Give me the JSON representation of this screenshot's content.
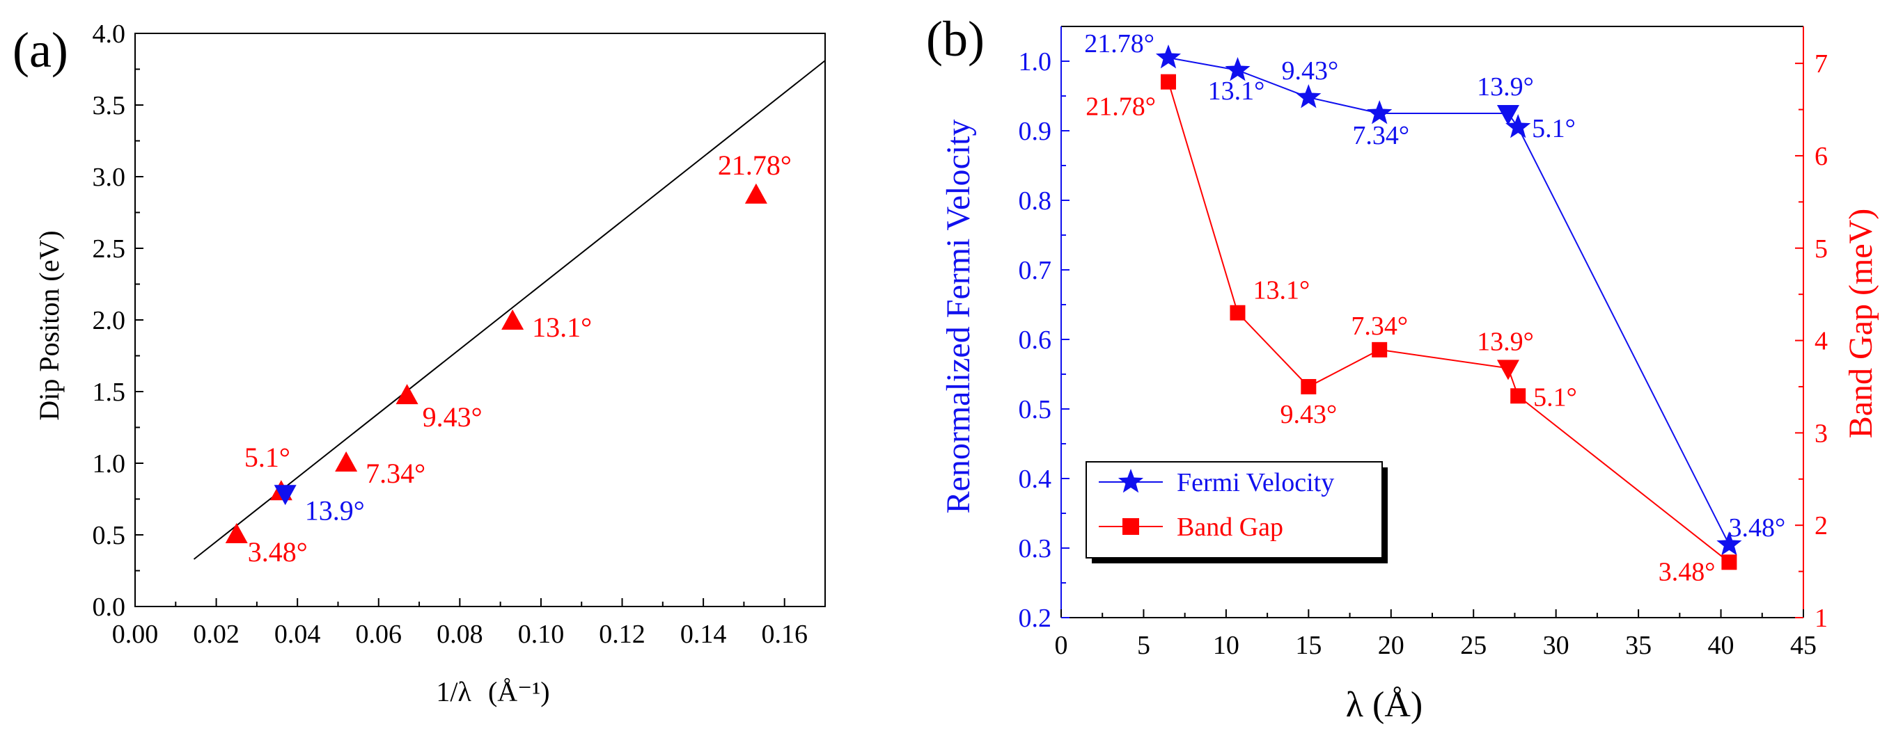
{
  "colors": {
    "axis": "#000000",
    "red": "#ff0000",
    "blue": "#1010ee"
  },
  "chart_data": [
    {
      "panel_label": "(a)",
      "type": "scatter",
      "xlabel": "1/λ",
      "xlabel_unit": "(Å⁻¹)",
      "ylabel": "Dip Positon (eV)",
      "xlim": [
        0.0,
        0.17
      ],
      "ylim": [
        0.0,
        4.0
      ],
      "xticks": [
        "0.00",
        "0.02",
        "0.04",
        "0.06",
        "0.08",
        "0.10",
        "0.12",
        "0.14",
        "0.16"
      ],
      "yticks": [
        "0.0",
        "0.5",
        "1.0",
        "1.5",
        "2.0",
        "2.5",
        "3.0",
        "3.5",
        "4.0"
      ],
      "fit_line": {
        "x": [
          0.0145,
          0.17
        ],
        "y": [
          0.33,
          3.81
        ]
      },
      "points": [
        {
          "x": 0.025,
          "y": 0.5,
          "label": "3.48°",
          "marker": "triangle-up",
          "color": "red"
        },
        {
          "x": 0.036,
          "y": 0.8,
          "label": "5.1°",
          "marker": "triangle-up",
          "color": "red"
        },
        {
          "x": 0.037,
          "y": 0.79,
          "label": "13.9°",
          "marker": "triangle-down",
          "color": "blue"
        },
        {
          "x": 0.052,
          "y": 1.0,
          "label": "7.34°",
          "marker": "triangle-up",
          "color": "red"
        },
        {
          "x": 0.067,
          "y": 1.47,
          "label": "9.43°",
          "marker": "triangle-up",
          "color": "red"
        },
        {
          "x": 0.093,
          "y": 1.99,
          "label": "13.1°",
          "marker": "triangle-up",
          "color": "red"
        },
        {
          "x": 0.153,
          "y": 2.87,
          "label": "21.78°",
          "marker": "triangle-up",
          "color": "red"
        }
      ]
    },
    {
      "panel_label": "(b)",
      "type": "line",
      "xlabel": "λ (Å)",
      "ylabel_left": "Renormalized Fermi Velocity",
      "ylabel_right": "Band Gap (meV)",
      "xlim": [
        0,
        45
      ],
      "ylim_left": [
        0.2,
        1.05
      ],
      "ylim_right": [
        1,
        7.4
      ],
      "xticks": [
        "0",
        "5",
        "10",
        "15",
        "20",
        "25",
        "30",
        "35",
        "40",
        "45"
      ],
      "yticks_left": [
        "0.2",
        "0.3",
        "0.4",
        "0.5",
        "0.6",
        "0.7",
        "0.8",
        "0.9",
        "1.0"
      ],
      "yticks_right": [
        "1",
        "2",
        "3",
        "4",
        "5",
        "6",
        "7"
      ],
      "legend": {
        "placement": "bottom-left",
        "fermi": "Fermi Velocity",
        "gap": "Band Gap"
      },
      "series": [
        {
          "name": "Fermi Velocity",
          "axis": "left",
          "marker": "star",
          "color": "blue",
          "points": [
            {
              "x": 6.5,
              "y": 1.005,
              "marker": "star",
              "label": "21.78°"
            },
            {
              "x": 10.7,
              "y": 0.987,
              "marker": "star",
              "label": "13.1°"
            },
            {
              "x": 15.0,
              "y": 0.948,
              "marker": "star",
              "label": "9.43°"
            },
            {
              "x": 19.3,
              "y": 0.925,
              "marker": "star",
              "label": "7.34°"
            },
            {
              "x": 27.1,
              "y": 0.925,
              "marker": "triangle-down",
              "label": "13.9°"
            },
            {
              "x": 27.7,
              "y": 0.905,
              "marker": "star",
              "label": "5.1°"
            },
            {
              "x": 40.5,
              "y": 0.305,
              "marker": "star",
              "label": "3.48°"
            }
          ]
        },
        {
          "name": "Band Gap",
          "axis": "right",
          "marker": "square",
          "color": "red",
          "points": [
            {
              "x": 6.5,
              "y": 6.8,
              "marker": "square",
              "label": "21.78°"
            },
            {
              "x": 10.7,
              "y": 4.3,
              "marker": "square",
              "label": "13.1°"
            },
            {
              "x": 15.0,
              "y": 3.5,
              "marker": "square",
              "label": "9.43°"
            },
            {
              "x": 19.3,
              "y": 3.9,
              "marker": "square",
              "label": "7.34°"
            },
            {
              "x": 27.1,
              "y": 3.7,
              "marker": "triangle-down",
              "label": "13.9°"
            },
            {
              "x": 27.7,
              "y": 3.4,
              "marker": "square",
              "label": "5.1°"
            },
            {
              "x": 40.5,
              "y": 1.6,
              "marker": "square",
              "label": "3.48°"
            }
          ]
        }
      ]
    }
  ]
}
